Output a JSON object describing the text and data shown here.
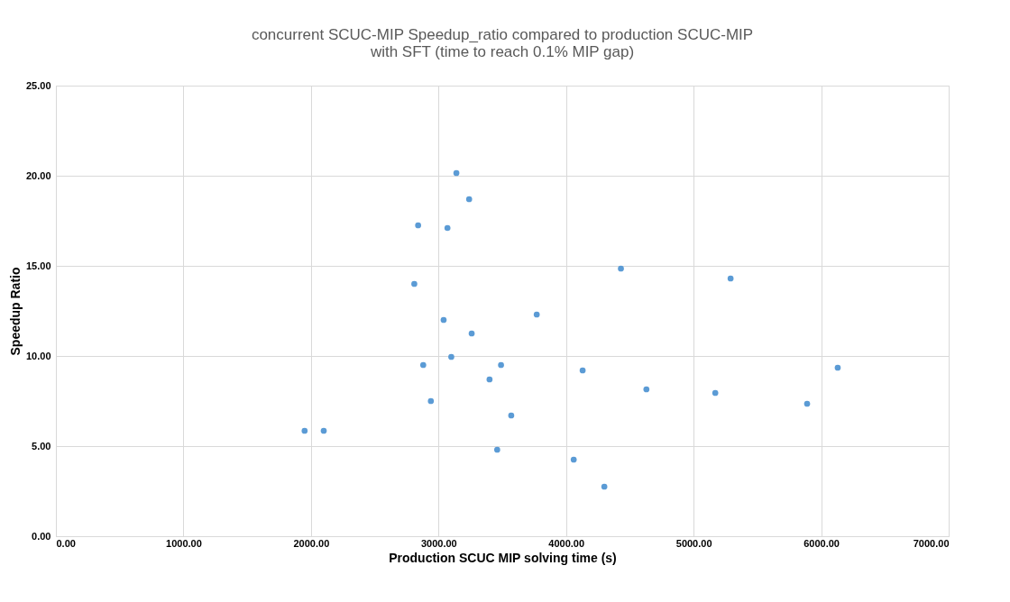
{
  "chart_data": {
    "type": "scatter",
    "title": [
      "concurrent SCUC-MIP Speedup_ratio compared to production SCUC-MIP",
      "with SFT (time to reach 0.1% MIP gap)"
    ],
    "xlabel": "Production SCUC MIP solving time (s)",
    "ylabel": "Speedup Ratio",
    "series": [
      {
        "color": "#5b9bd5",
        "x": [
          1950,
          2100,
          2810,
          2840,
          2880,
          2940,
          3040,
          3070,
          3100,
          3140,
          3240,
          3260,
          3400,
          3460,
          3490,
          3570,
          3770,
          4060,
          4130,
          4300,
          4430,
          4630,
          5170,
          5290,
          5890,
          6130
        ],
        "values": [
          5.85,
          5.85,
          14.0,
          17.25,
          9.5,
          7.5,
          12.0,
          17.1,
          9.95,
          20.15,
          18.7,
          11.25,
          8.7,
          4.8,
          9.5,
          6.7,
          12.3,
          4.25,
          9.2,
          2.75,
          14.85,
          8.15,
          7.95,
          14.3,
          7.35,
          9.35
        ]
      }
    ],
    "xlim": [
      0,
      7000
    ],
    "xticks": [
      {
        "value": 0,
        "label": "0.00"
      },
      {
        "value": 1000,
        "label": "1000.00"
      },
      {
        "value": 2000,
        "label": "2000.00"
      },
      {
        "value": 3000,
        "label": "3000.00"
      },
      {
        "value": 4000,
        "label": "4000.00"
      },
      {
        "value": 5000,
        "label": "5000.00"
      },
      {
        "value": 6000,
        "label": "6000.00"
      },
      {
        "value": 7000,
        "label": "7000.00"
      }
    ],
    "ylim": [
      0,
      25
    ],
    "yticks": [
      {
        "value": 0,
        "label": "0.00"
      },
      {
        "value": 5,
        "label": "5.00"
      },
      {
        "value": 10,
        "label": "10.00"
      },
      {
        "value": 15,
        "label": "15.00"
      },
      {
        "value": 20,
        "label": "20.00"
      },
      {
        "value": 25,
        "label": "25.00"
      }
    ],
    "grid": true,
    "marker": "circle",
    "legend": false
  }
}
